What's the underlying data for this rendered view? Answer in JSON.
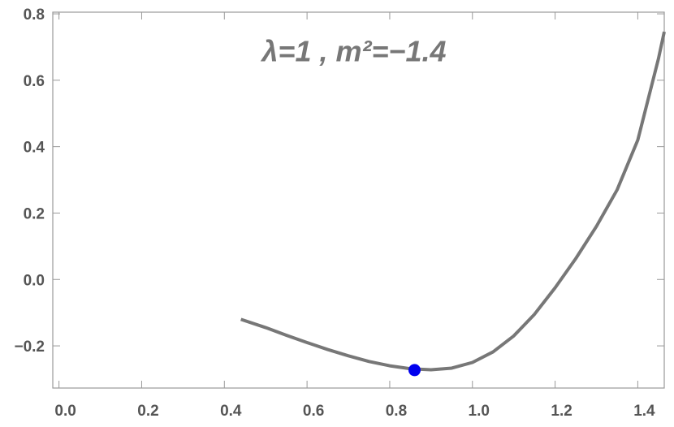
{
  "chart_data": {
    "type": "line",
    "annotation": "λ=1 , m²=−1.4",
    "xlim": [
      -0.015,
      1.464
    ],
    "ylim": [
      -0.327,
      0.805
    ],
    "xticks": [
      {
        "value": 0,
        "label": "0.0"
      },
      0.2,
      0.4,
      0.6,
      0.8,
      {
        "value": 1,
        "label": "1.0"
      },
      1.2,
      1.4
    ],
    "yticks": [
      {
        "value": -0.2,
        "label": "−0.2"
      },
      {
        "value": 0,
        "label": "0.0"
      },
      0.2,
      0.4,
      0.6,
      0.8
    ],
    "frame_color": "#999999",
    "label_color": "#555555",
    "series": [
      {
        "type": "line",
        "color": "#777777",
        "x": [
          0.44,
          0.5,
          0.55,
          0.6,
          0.65,
          0.7,
          0.75,
          0.8,
          0.85,
          0.9,
          0.95,
          1.0,
          1.05,
          1.1,
          1.15,
          1.2,
          1.25,
          1.3,
          1.35,
          1.4,
          1.45,
          1.464
        ],
        "values": [
          -0.12,
          -0.145,
          -0.168,
          -0.19,
          -0.211,
          -0.23,
          -0.247,
          -0.26,
          -0.269,
          -0.272,
          -0.267,
          -0.25,
          -0.218,
          -0.17,
          -0.105,
          -0.025,
          0.063,
          0.16,
          0.27,
          0.42,
          0.665,
          0.746
        ]
      },
      {
        "type": "scatter",
        "color": "#0000ee",
        "x": [
          0.86
        ],
        "values": [
          -0.273
        ]
      }
    ]
  }
}
